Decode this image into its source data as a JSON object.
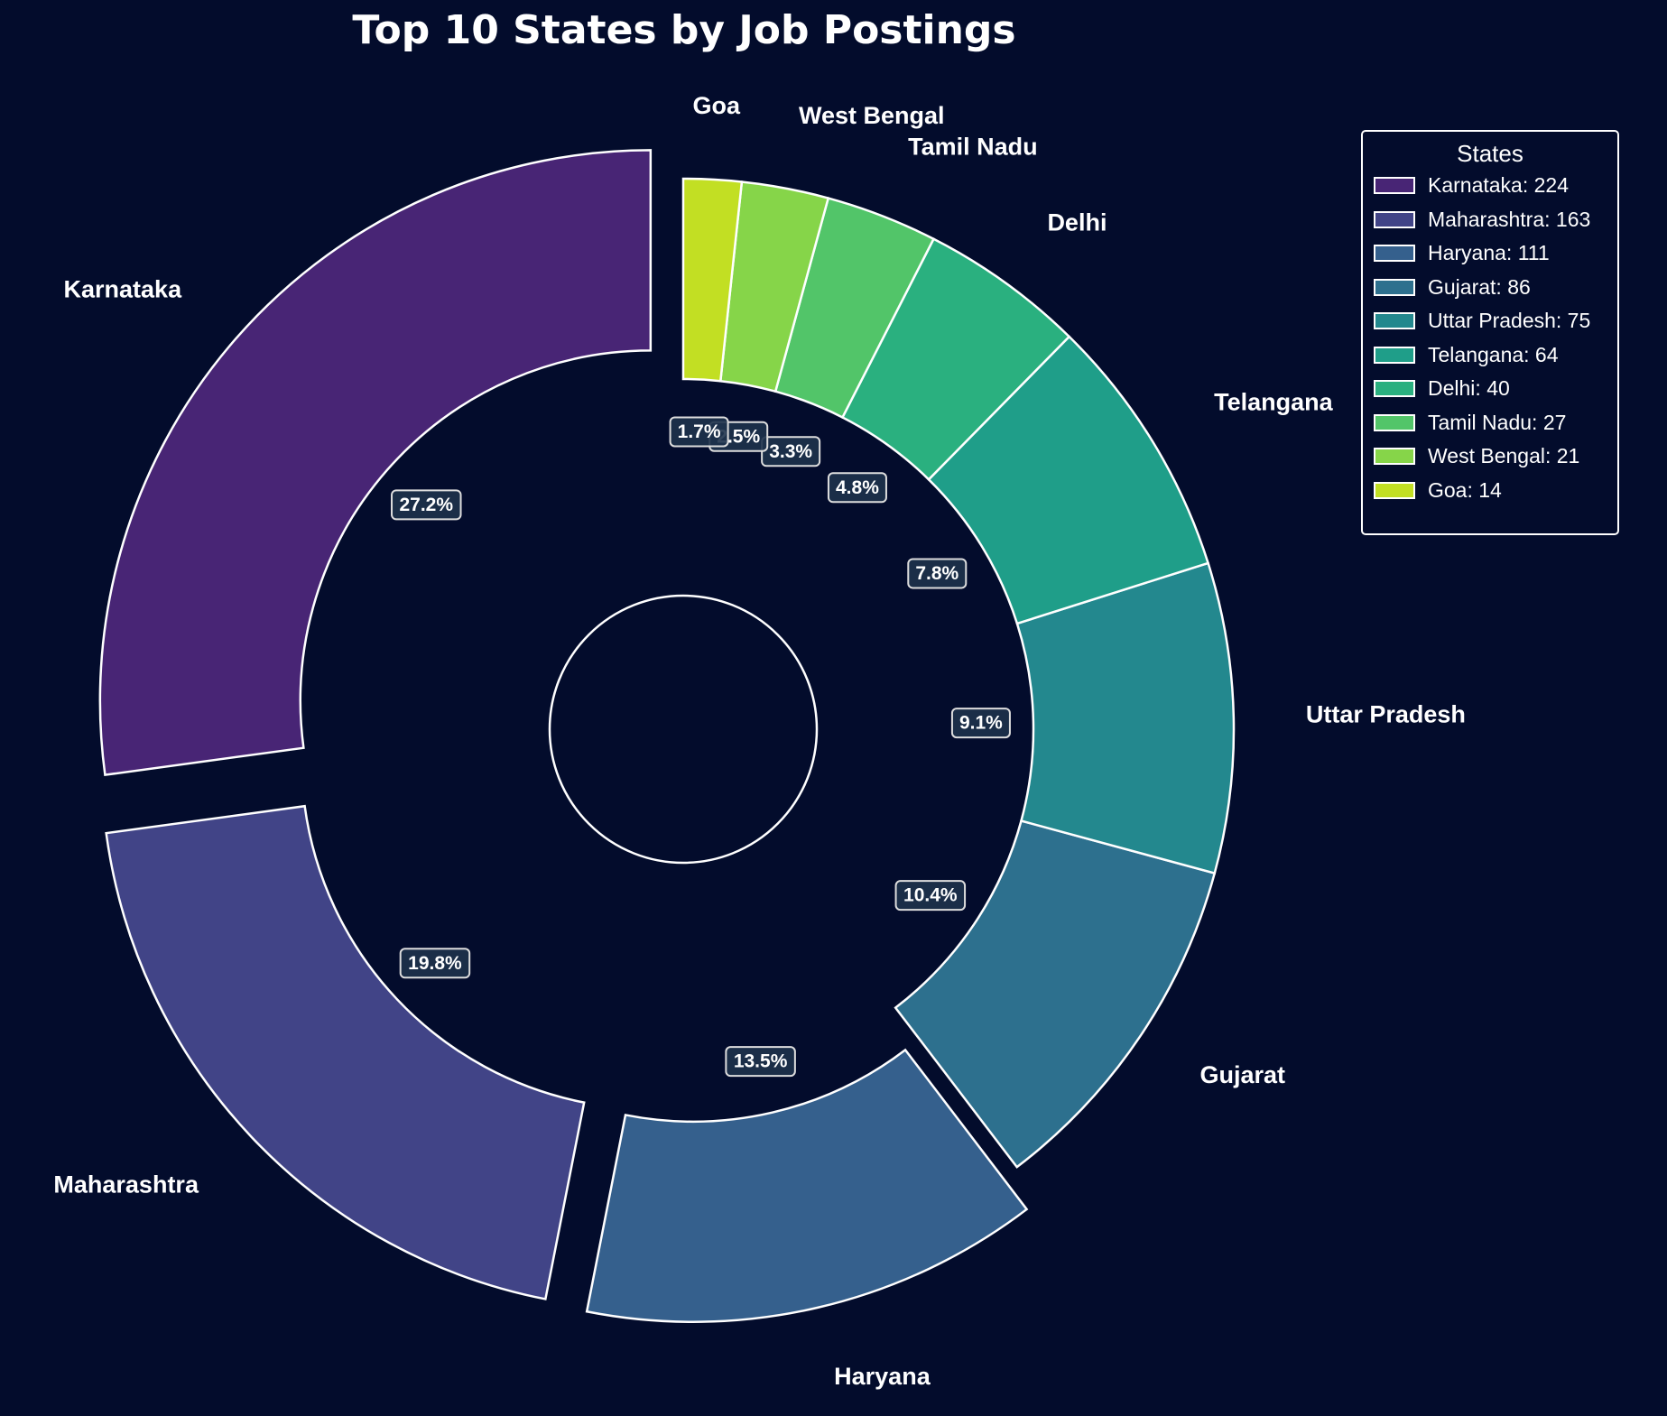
{
  "chart_data": {
    "type": "pie",
    "title": "Top 10 States by Job Postings",
    "legend_title": "States",
    "legend_position": "top-right",
    "categories": [
      "Karnataka",
      "Maharashtra",
      "Haryana",
      "Gujarat",
      "Uttar Pradesh",
      "Telangana",
      "Delhi",
      "Tamil Nadu",
      "West Bengal",
      "Goa"
    ],
    "values": [
      224,
      163,
      111,
      86,
      75,
      64,
      40,
      27,
      21,
      14
    ],
    "percent_labels": [
      "27.2%",
      "19.8%",
      "13.5%",
      "10.4%",
      "9.1%",
      "7.8%",
      "4.8%",
      "3.3%",
      "2.5%",
      "1.7%"
    ],
    "legend_labels": [
      "Karnataka: 224",
      "Maharashtra: 163",
      "Haryana: 111",
      "Gujarat: 86",
      "Uttar Pradesh: 75",
      "Telangana: 64",
      "Delhi: 40",
      "Tamil Nadu: 27",
      "West Bengal: 21",
      "Goa: 14"
    ],
    "exploded": [
      "Karnataka",
      "Maharashtra",
      "Haryana"
    ],
    "colors": [
      "#482575",
      "#414487",
      "#35608d",
      "#2d708e",
      "#23888e",
      "#1f9e89",
      "#2ab07f",
      "#52c569",
      "#86d549",
      "#c2df23"
    ],
    "style": {
      "donut": true,
      "center_circle": true,
      "background": "#030c2c",
      "edge_color": "#ffffff"
    }
  }
}
